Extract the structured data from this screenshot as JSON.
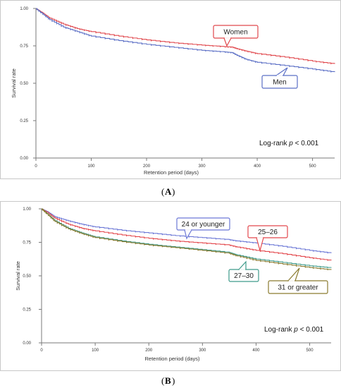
{
  "chart_data": [
    {
      "type": "line",
      "panel_label": "A",
      "xlabel": "Retention period (days)",
      "ylabel": "Survival rate",
      "xlim": [
        0,
        540
      ],
      "ylim": [
        0,
        1
      ],
      "x_ticks": [
        0,
        100,
        200,
        300,
        400,
        500
      ],
      "y_ticks": [
        0.0,
        0.25,
        0.5,
        0.75,
        1.0
      ],
      "y_tick_labels": [
        "0.00",
        "0.25",
        "0.50",
        "0.75",
        "1.00"
      ],
      "grid": false,
      "annotation": "Log-rank p < 0.001",
      "annotation_prefix": "Log-rank",
      "annotation_italic": "p",
      "annotation_suffix": "< 0.001",
      "series": [
        {
          "name": "Women",
          "color": "#e0474c",
          "x": [
            0,
            10,
            25,
            50,
            75,
            100,
            150,
            200,
            250,
            300,
            340,
            355,
            365,
            380,
            400,
            450,
            500,
            540
          ],
          "y": [
            1.0,
            0.975,
            0.935,
            0.895,
            0.865,
            0.845,
            0.815,
            0.79,
            0.77,
            0.755,
            0.745,
            0.742,
            0.73,
            0.715,
            0.698,
            0.675,
            0.648,
            0.63
          ]
        },
        {
          "name": "Men",
          "color": "#5b6fc5",
          "x": [
            0,
            10,
            25,
            50,
            75,
            100,
            150,
            200,
            250,
            300,
            340,
            355,
            365,
            380,
            400,
            450,
            500,
            540
          ],
          "y": [
            1.0,
            0.97,
            0.925,
            0.875,
            0.845,
            0.815,
            0.785,
            0.76,
            0.74,
            0.72,
            0.71,
            0.705,
            0.685,
            0.66,
            0.64,
            0.618,
            0.595,
            0.575
          ]
        }
      ]
    },
    {
      "type": "line",
      "panel_label": "B",
      "xlabel": "Retention period (days)",
      "ylabel": "Survival rate",
      "xlim": [
        0,
        540
      ],
      "ylim": [
        0,
        1
      ],
      "x_ticks": [
        0,
        100,
        200,
        300,
        400,
        500
      ],
      "y_ticks": [
        0.0,
        0.25,
        0.5,
        0.75,
        1.0
      ],
      "y_tick_labels": [
        "0.00",
        "0.25",
        "0.50",
        "0.75",
        "1.00"
      ],
      "grid": false,
      "annotation": "Log-rank p < 0.001",
      "annotation_prefix": "Log-rank",
      "annotation_italic": "p",
      "annotation_suffix": "< 0.001",
      "series": [
        {
          "name": "24 or younger",
          "color": "#6c78d6",
          "x": [
            0,
            10,
            25,
            50,
            75,
            100,
            150,
            200,
            250,
            300,
            350,
            365,
            400,
            450,
            500,
            540
          ],
          "y": [
            1.0,
            0.98,
            0.94,
            0.91,
            0.885,
            0.865,
            0.84,
            0.82,
            0.8,
            0.785,
            0.77,
            0.76,
            0.745,
            0.72,
            0.69,
            0.67
          ]
        },
        {
          "name": "25–26",
          "color": "#e3484d",
          "x": [
            0,
            10,
            25,
            50,
            75,
            100,
            150,
            200,
            250,
            300,
            350,
            365,
            400,
            450,
            500,
            540
          ],
          "y": [
            1.0,
            0.975,
            0.93,
            0.885,
            0.855,
            0.835,
            0.805,
            0.78,
            0.76,
            0.745,
            0.73,
            0.715,
            0.69,
            0.665,
            0.635,
            0.615
          ]
        },
        {
          "name": "27–30",
          "color": "#3e9a8a",
          "x": [
            0,
            10,
            25,
            50,
            75,
            100,
            150,
            200,
            250,
            300,
            350,
            365,
            400,
            450,
            500,
            540
          ],
          "y": [
            1.0,
            0.965,
            0.91,
            0.855,
            0.82,
            0.79,
            0.76,
            0.735,
            0.715,
            0.695,
            0.675,
            0.655,
            0.625,
            0.6,
            0.575,
            0.56
          ]
        },
        {
          "name": "31 or greater",
          "color": "#8a7a2e",
          "x": [
            0,
            10,
            25,
            50,
            75,
            100,
            150,
            200,
            250,
            300,
            350,
            365,
            400,
            450,
            500,
            540
          ],
          "y": [
            1.0,
            0.962,
            0.905,
            0.85,
            0.815,
            0.785,
            0.755,
            0.73,
            0.71,
            0.69,
            0.668,
            0.648,
            0.615,
            0.588,
            0.562,
            0.545
          ]
        }
      ]
    }
  ],
  "figure_labels": {
    "a_open": "(",
    "a_letter": "A",
    "a_close": ")",
    "b_open": "(",
    "b_letter": "B",
    "b_close": ")"
  }
}
